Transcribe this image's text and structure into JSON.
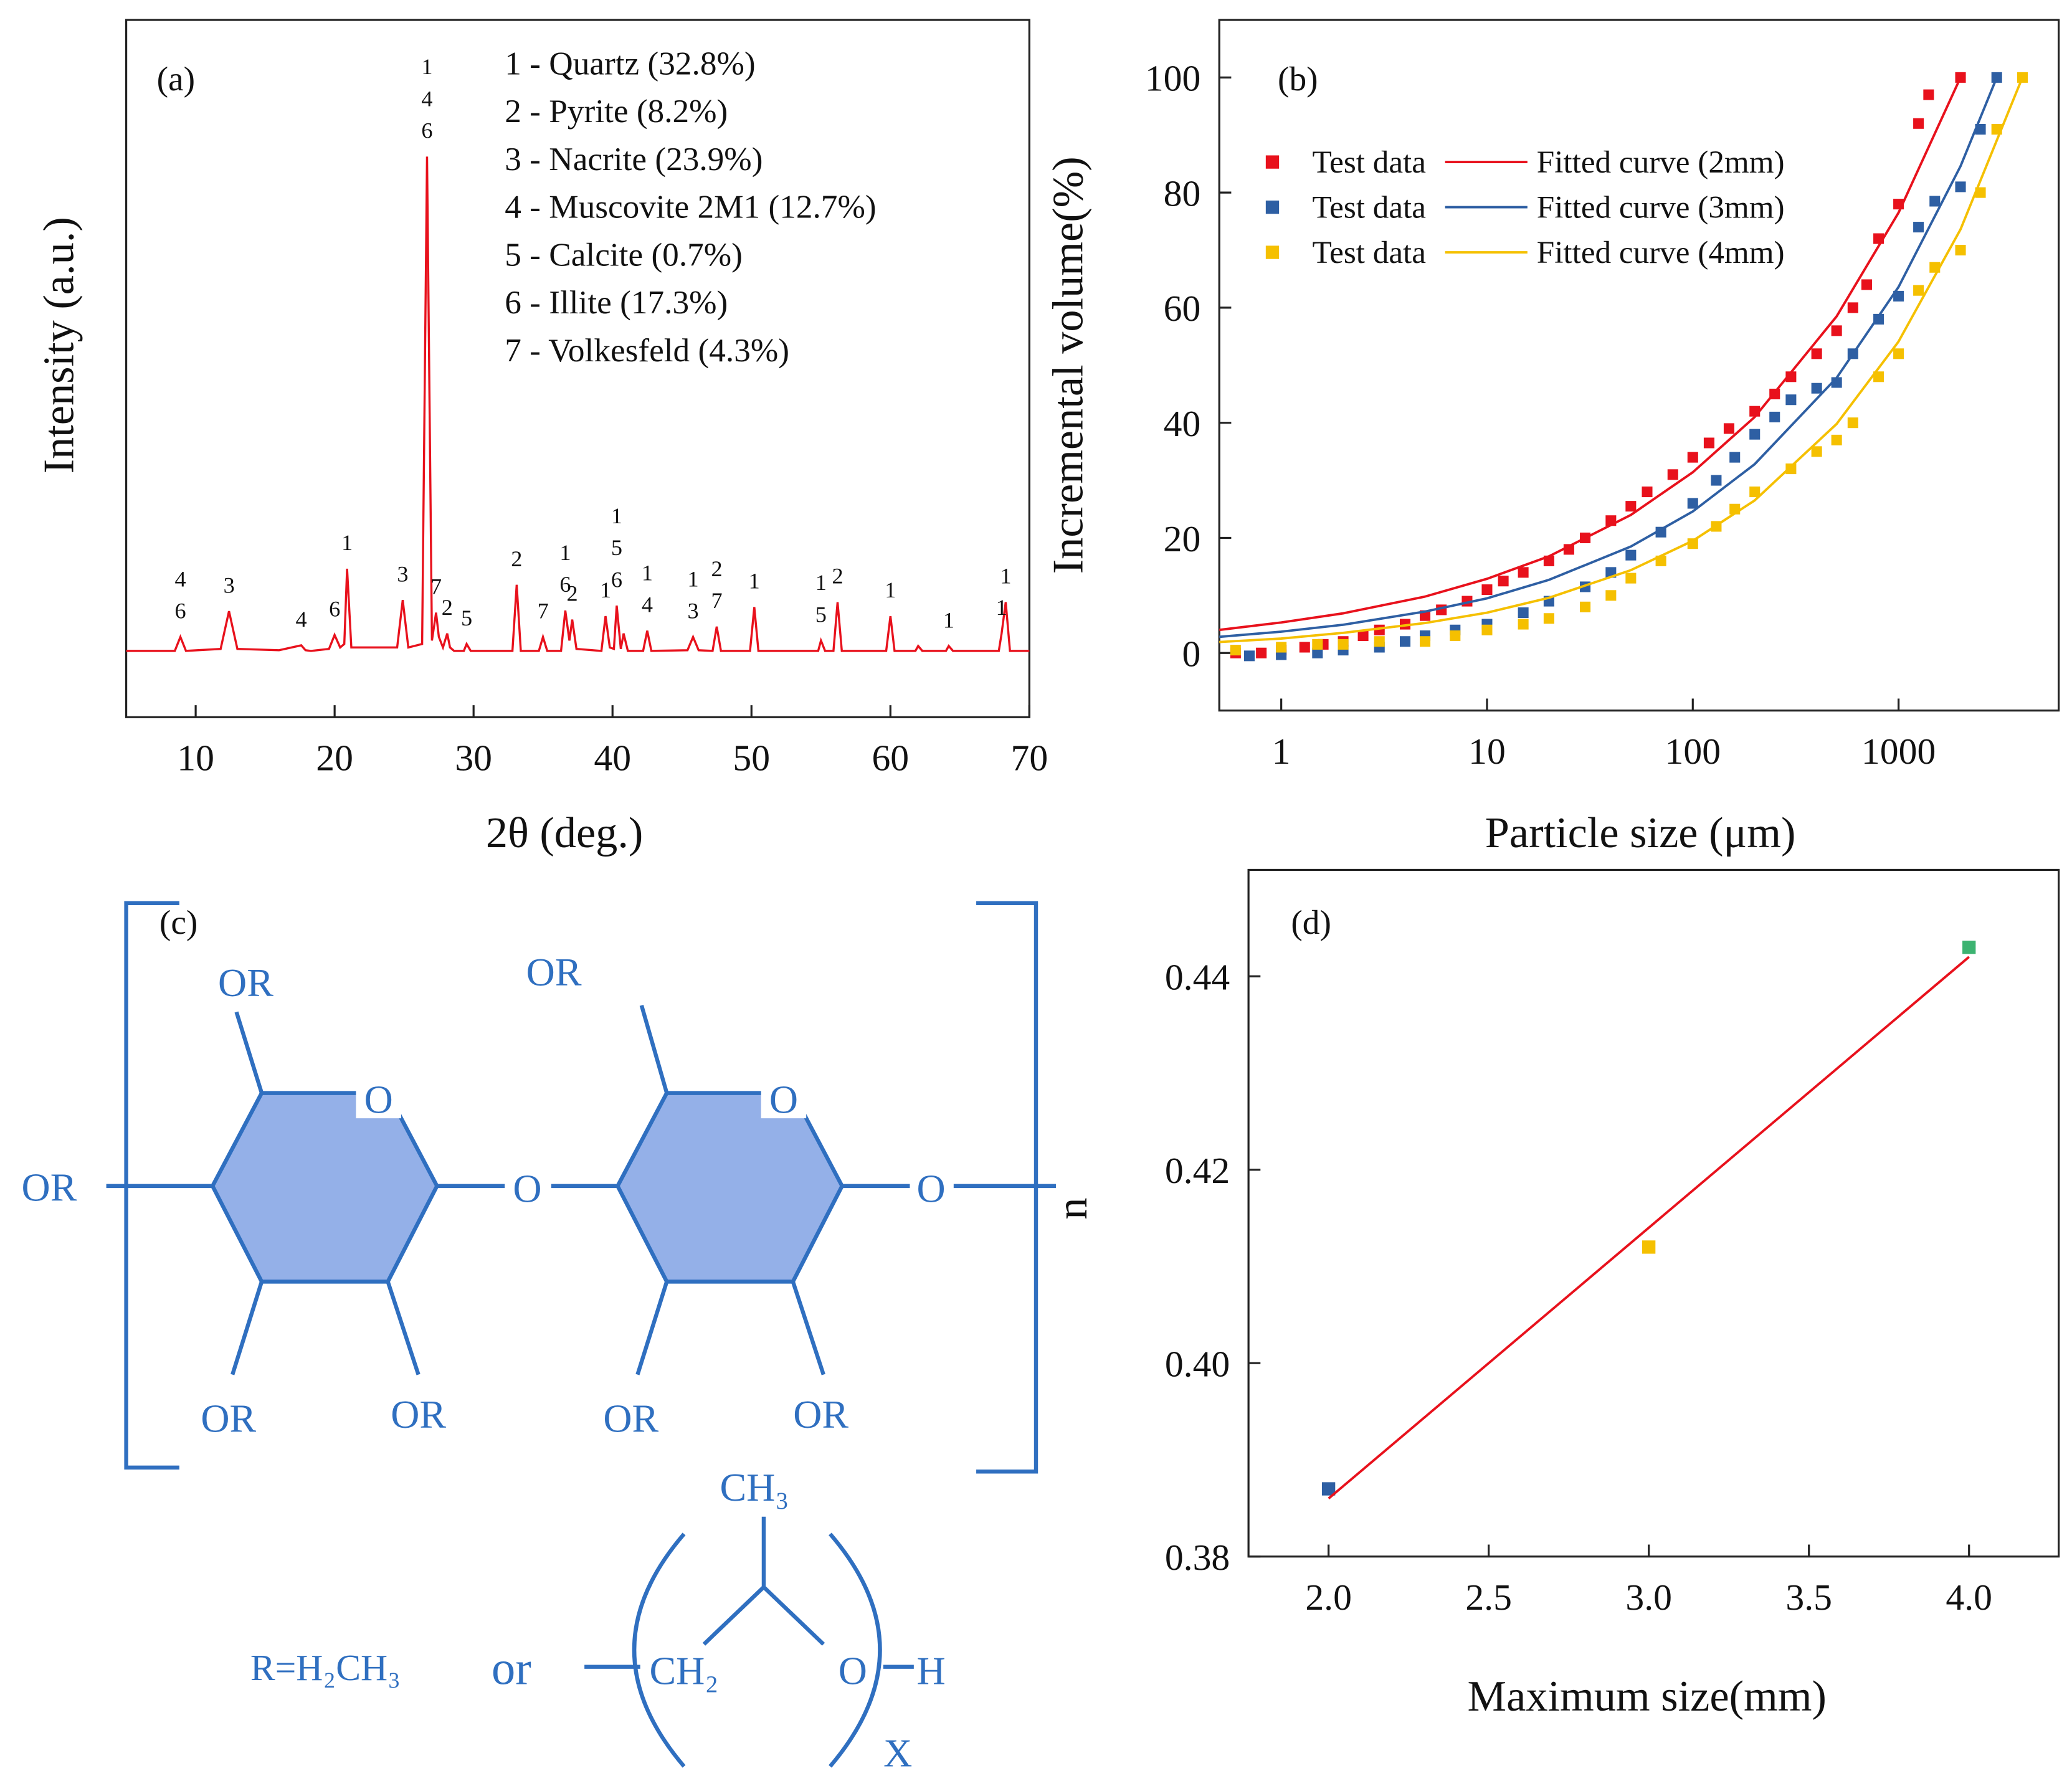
{
  "chart_data": [
    {
      "type": "line",
      "panel_label": "(a)",
      "xlabel": "2θ (deg.)",
      "ylabel": "Intensity (a.u.)",
      "xlim": [
        5,
        70
      ],
      "xticks": [
        10,
        20,
        30,
        40,
        50,
        60,
        70
      ],
      "ylim": [
        0,
        100
      ],
      "color": "#e8111c",
      "legend_text": [
        "1 - Quartz (32.8%)",
        "2 - Pyrite (8.2%)",
        "3 - Nacrite (23.9%)",
        "4 - Muscovite 2M1 (12.7%)",
        "5 - Calcite (0.7%)",
        "6 - Illite (17.3%)",
        "7 - Volkesfeld (4.3%)"
      ],
      "x": [
        5,
        8.5,
        8.9,
        9.3,
        11.8,
        12.4,
        13,
        16,
        17.6,
        17.9,
        18.3,
        19.6,
        20,
        20.4,
        20.7,
        20.9,
        21.2,
        24.5,
        24.9,
        25.3,
        26.3,
        26.65,
        27,
        27.3,
        27.5,
        27.8,
        28.1,
        28.3,
        28.6,
        29.3,
        29.5,
        29.8,
        32.8,
        33.1,
        33.4,
        34.7,
        35,
        35.3,
        36.3,
        36.6,
        36.9,
        37.1,
        37.4,
        39.2,
        39.5,
        39.8,
        40.1,
        40.3,
        40.6,
        40.8,
        41.1,
        42.2,
        42.5,
        42.8,
        45.4,
        45.8,
        46.2,
        47.2,
        47.5,
        47.8,
        49.9,
        50.2,
        50.5,
        54.8,
        55,
        55.3,
        55.9,
        56.2,
        56.5,
        59.7,
        60,
        60.3,
        61.8,
        62,
        62.3,
        64,
        64.2,
        64.5,
        67.8,
        68,
        68.3,
        68.6,
        70
      ],
      "values": [
        9.5,
        9.5,
        11.5,
        9.5,
        9.8,
        15.2,
        9.8,
        9.6,
        10.3,
        9.6,
        9.5,
        9.8,
        11.8,
        10,
        10.5,
        21.3,
        10,
        10,
        16.8,
        10,
        10.5,
        80.4,
        11,
        15,
        11.5,
        10,
        12,
        10,
        9.5,
        9.5,
        10.5,
        9.5,
        9.5,
        19,
        9.5,
        9.5,
        11.5,
        9.5,
        9.5,
        15.3,
        11,
        14,
        9.8,
        9.5,
        14.5,
        10,
        9.8,
        16,
        9.8,
        12,
        9.5,
        9.5,
        12.4,
        9.5,
        9.6,
        11.5,
        9.6,
        9.5,
        13,
        9.5,
        9.5,
        15.8,
        9.5,
        9.5,
        11,
        9.5,
        9.5,
        16.5,
        9.5,
        9.5,
        14.5,
        9.5,
        9.5,
        10.2,
        9.5,
        9.5,
        10.2,
        9.5,
        9.5,
        12,
        16.5,
        9.5,
        9.5
      ],
      "annotations": [
        {
          "x": 8.9,
          "labels": [
            "4",
            "6"
          ]
        },
        {
          "x": 12.4,
          "labels": [
            "3"
          ]
        },
        {
          "x": 17.6,
          "labels": [
            "4"
          ]
        },
        {
          "x": 20,
          "labels": [
            "6"
          ]
        },
        {
          "x": 20.9,
          "labels": [
            "1"
          ]
        },
        {
          "x": 24.9,
          "labels": [
            "3"
          ]
        },
        {
          "x": 26.65,
          "labels": [
            "1",
            "4",
            "6"
          ]
        },
        {
          "x": 27.3,
          "labels": [
            "7"
          ]
        },
        {
          "x": 28.1,
          "labels": [
            "2"
          ]
        },
        {
          "x": 29.5,
          "labels": [
            "5"
          ]
        },
        {
          "x": 33.1,
          "labels": [
            "2"
          ]
        },
        {
          "x": 35,
          "labels": [
            "7"
          ]
        },
        {
          "x": 36.6,
          "labels": [
            "1",
            "6"
          ]
        },
        {
          "x": 37.1,
          "labels": [
            "2"
          ]
        },
        {
          "x": 39.5,
          "labels": [
            "1"
          ]
        },
        {
          "x": 40.3,
          "labels": [
            "1",
            "5",
            "6"
          ]
        },
        {
          "x": 42.5,
          "labels": [
            "1",
            "4"
          ]
        },
        {
          "x": 45.8,
          "labels": [
            "1",
            "3"
          ]
        },
        {
          "x": 47.5,
          "labels": [
            "2",
            "7"
          ]
        },
        {
          "x": 50.2,
          "labels": [
            "1"
          ]
        },
        {
          "x": 55,
          "labels": [
            "1",
            "5"
          ]
        },
        {
          "x": 56.2,
          "labels": [
            "2"
          ]
        },
        {
          "x": 60,
          "labels": [
            "1"
          ]
        },
        {
          "x": 64.2,
          "labels": [
            "1"
          ]
        },
        {
          "x": 68,
          "labels": [
            "1"
          ]
        },
        {
          "x": 68.3,
          "labels": [
            "1"
          ]
        }
      ]
    },
    {
      "type": "scatter",
      "panel_label": "(b)",
      "xlabel": "Particle size (μm)",
      "ylabel": "Incremental volume(%)",
      "xscale": "log",
      "xlim": [
        0.5,
        6000
      ],
      "xticks": [
        1,
        10,
        100,
        1000
      ],
      "ylim": [
        -10,
        110
      ],
      "yticks": [
        0,
        20,
        40,
        60,
        80,
        100
      ],
      "legend": "upper left",
      "series": [
        {
          "name": "Test data",
          "mode": "markers",
          "color": "#e8111c",
          "x": [
            0.6,
            0.8,
            1,
            1.3,
            1.6,
            2,
            2.5,
            3,
            4,
            5,
            6,
            8,
            10,
            12,
            15,
            20,
            25,
            30,
            40,
            50,
            60,
            80,
            100,
            120,
            150,
            200,
            250,
            300,
            400,
            500,
            600,
            700,
            800,
            1000,
            1250,
            1400,
            2000
          ],
          "values": [
            0,
            0,
            0.5,
            1,
            1.5,
            2,
            3,
            4,
            5,
            6.5,
            7.5,
            9,
            11,
            12.5,
            14,
            16,
            18,
            20,
            23,
            25.5,
            28,
            31,
            34,
            36.5,
            39,
            42,
            45,
            48,
            52,
            56,
            60,
            64,
            72,
            78,
            92,
            97,
            100
          ]
        },
        {
          "name": "Fitted curve (2mm)",
          "mode": "line",
          "color": "#e8111c",
          "x": [
            0.5,
            1,
            2,
            5,
            10,
            20,
            50,
            100,
            200,
            500,
            1000,
            2000
          ],
          "values": [
            4.0,
            5.3,
            6.9,
            9.8,
            12.9,
            16.8,
            24.0,
            31.4,
            41.0,
            58.5,
            76.5,
            100
          ]
        },
        {
          "name": "Test data",
          "mode": "markers",
          "color": "#2e5fa3",
          "x": [
            0.7,
            1,
            1.5,
            2,
            3,
            4,
            5,
            7,
            10,
            15,
            20,
            30,
            40,
            50,
            70,
            100,
            130,
            160,
            200,
            250,
            300,
            400,
            500,
            600,
            800,
            1000,
            1250,
            1500,
            2000,
            2500,
            3000
          ],
          "values": [
            -0.5,
            -0.3,
            0,
            0.5,
            1,
            2,
            3,
            4,
            5,
            7,
            9,
            11.5,
            14,
            17,
            21,
            26,
            30,
            34,
            38,
            41,
            44,
            46,
            47,
            52,
            58,
            62,
            74,
            78.5,
            81,
            91,
            100
          ]
        },
        {
          "name": "Fitted curve (3mm)",
          "mode": "line",
          "color": "#2e5fa3",
          "x": [
            0.5,
            1,
            2,
            5,
            10,
            20,
            50,
            100,
            200,
            500,
            1000,
            2000,
            3000
          ],
          "values": [
            2.8,
            3.7,
            4.9,
            7.2,
            9.5,
            12.7,
            18.5,
            24.6,
            32.8,
            47.8,
            63.6,
            84.6,
            100
          ]
        },
        {
          "name": "Test data",
          "mode": "markers",
          "color": "#f5c000",
          "x": [
            0.6,
            1,
            1.5,
            2,
            3,
            5,
            7,
            10,
            15,
            20,
            30,
            40,
            50,
            70,
            100,
            130,
            160,
            200,
            300,
            400,
            500,
            600,
            800,
            1000,
            1250,
            1500,
            2000,
            2500,
            3000,
            4000
          ],
          "values": [
            0.5,
            1,
            1.5,
            1.5,
            2,
            2,
            3,
            4,
            5,
            6,
            8,
            10,
            13,
            16,
            19,
            22,
            25,
            28,
            32,
            35,
            37,
            40,
            48,
            52,
            63,
            67,
            70,
            80,
            91,
            100
          ]
        },
        {
          "name": "Fitted curve (4mm)",
          "mode": "line",
          "color": "#f5c000",
          "x": [
            0.5,
            1,
            2,
            5,
            10,
            20,
            50,
            100,
            200,
            500,
            1000,
            2000,
            4000
          ],
          "values": [
            1.9,
            2.5,
            3.5,
            5.2,
            7.0,
            9.6,
            14.4,
            19.5,
            26.5,
            39.8,
            54.1,
            73.6,
            100
          ]
        }
      ]
    },
    {
      "type": "scatter",
      "panel_label": "(d)",
      "xlabel": "Maximum size(mm)",
      "ylabel": "n",
      "xlim": [
        1.75,
        4.28
      ],
      "xticks": [
        {
          "value": 2,
          "label": "2.0"
        },
        2.5,
        {
          "value": 3,
          "label": "3.0"
        },
        3.5,
        {
          "value": 4,
          "label": "4.0"
        }
      ],
      "ylim": [
        0.38,
        0.451
      ],
      "yticks": [
        0.38,
        {
          "value": 0.4,
          "label": "0.40"
        },
        0.42,
        0.44
      ],
      "series": [
        {
          "mode": "markers",
          "colors": [
            "#2e5fa3",
            "#f5c000",
            "#3cb371"
          ],
          "x": [
            2,
            3,
            4
          ],
          "values": [
            0.387,
            0.412,
            0.443
          ]
        },
        {
          "mode": "line",
          "color": "#e8111c",
          "x": [
            2,
            4
          ],
          "values": [
            0.386,
            0.442
          ]
        }
      ]
    }
  ],
  "diagram": {
    "panel_label": "(c)",
    "substituent": "OR",
    "oxygen": "O",
    "definition": "R=H₂CH₃",
    "or": "or",
    "methyl": "CH₃",
    "methylene": "CH₂",
    "hydrogen": "H",
    "repeat": "X"
  }
}
